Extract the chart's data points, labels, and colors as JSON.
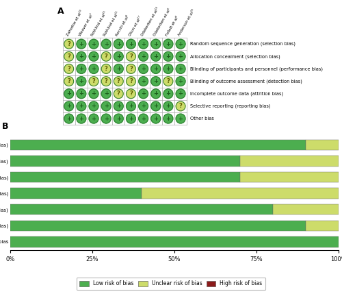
{
  "studies": [
    "Zahodne et al¹⁰",
    "Weaver et al⁷",
    "Rothlind et al¹⁵",
    "Rothlind et al¹¹",
    "Rocchi et al⁸",
    "Okun et al¹⁷",
    "Odekerken et al¹⁶",
    "Odekerken et al⁶",
    "Follett et al⁶",
    "Anderson et al¹³"
  ],
  "bias_types": [
    "Random sequence generation (selection bias)",
    "Allocation concealment (selection bias)",
    "Blinding of participants and personnel (performance bias)",
    "Blinding of outcome assessment (detection bias)",
    "Incomplete outcome data (attrition bias)",
    "Selective reporting (reporting bias)",
    "Other bias"
  ],
  "grid": [
    [
      "U",
      "L",
      "L",
      "L",
      "L",
      "L",
      "L",
      "L",
      "L",
      "L"
    ],
    [
      "U",
      "L",
      "L",
      "U",
      "L",
      "U",
      "L",
      "L",
      "L",
      "L"
    ],
    [
      "U",
      "L",
      "L",
      "U",
      "L",
      "U",
      "L",
      "L",
      "L",
      "L"
    ],
    [
      "U",
      "L",
      "U",
      "U",
      "U",
      "U",
      "L",
      "L",
      "U",
      "L"
    ],
    [
      "L",
      "L",
      "L",
      "L",
      "U",
      "U",
      "L",
      "L",
      "L",
      "L"
    ],
    [
      "L",
      "L",
      "L",
      "L",
      "L",
      "L",
      "L",
      "L",
      "L",
      "U"
    ],
    [
      "L",
      "L",
      "L",
      "L",
      "L",
      "L",
      "L",
      "L",
      "L",
      "L"
    ]
  ],
  "bar_data": {
    "low": [
      90,
      70,
      70,
      40,
      80,
      90,
      100
    ],
    "unclear": [
      10,
      30,
      30,
      60,
      20,
      10,
      0
    ],
    "high": [
      0,
      0,
      0,
      0,
      0,
      0,
      0
    ]
  },
  "bar_labels": [
    "Random sequence generation (selection bias)",
    "Allocation concealment (selection bias)",
    "Blinding of participants and personnel (performance bias)",
    "Blinding of outcome assessment (detection bias)",
    "Incomplete outcome data (attrition bias)",
    "Selective reporting (reporting bias)",
    "Other bias"
  ],
  "color_low": "#4cae4f",
  "color_unclear": "#cddc6a",
  "color_high": "#8b1a1a",
  "label_A": "A",
  "label_B": "B",
  "legend_low": "Low risk of bias",
  "legend_unclear": "Unclear risk of bias",
  "legend_high": "High risk of bias",
  "xticks": [
    0,
    25,
    50,
    75,
    100
  ],
  "xtick_labels": [
    "0%",
    "25%",
    "50%",
    "75%",
    "100%"
  ]
}
